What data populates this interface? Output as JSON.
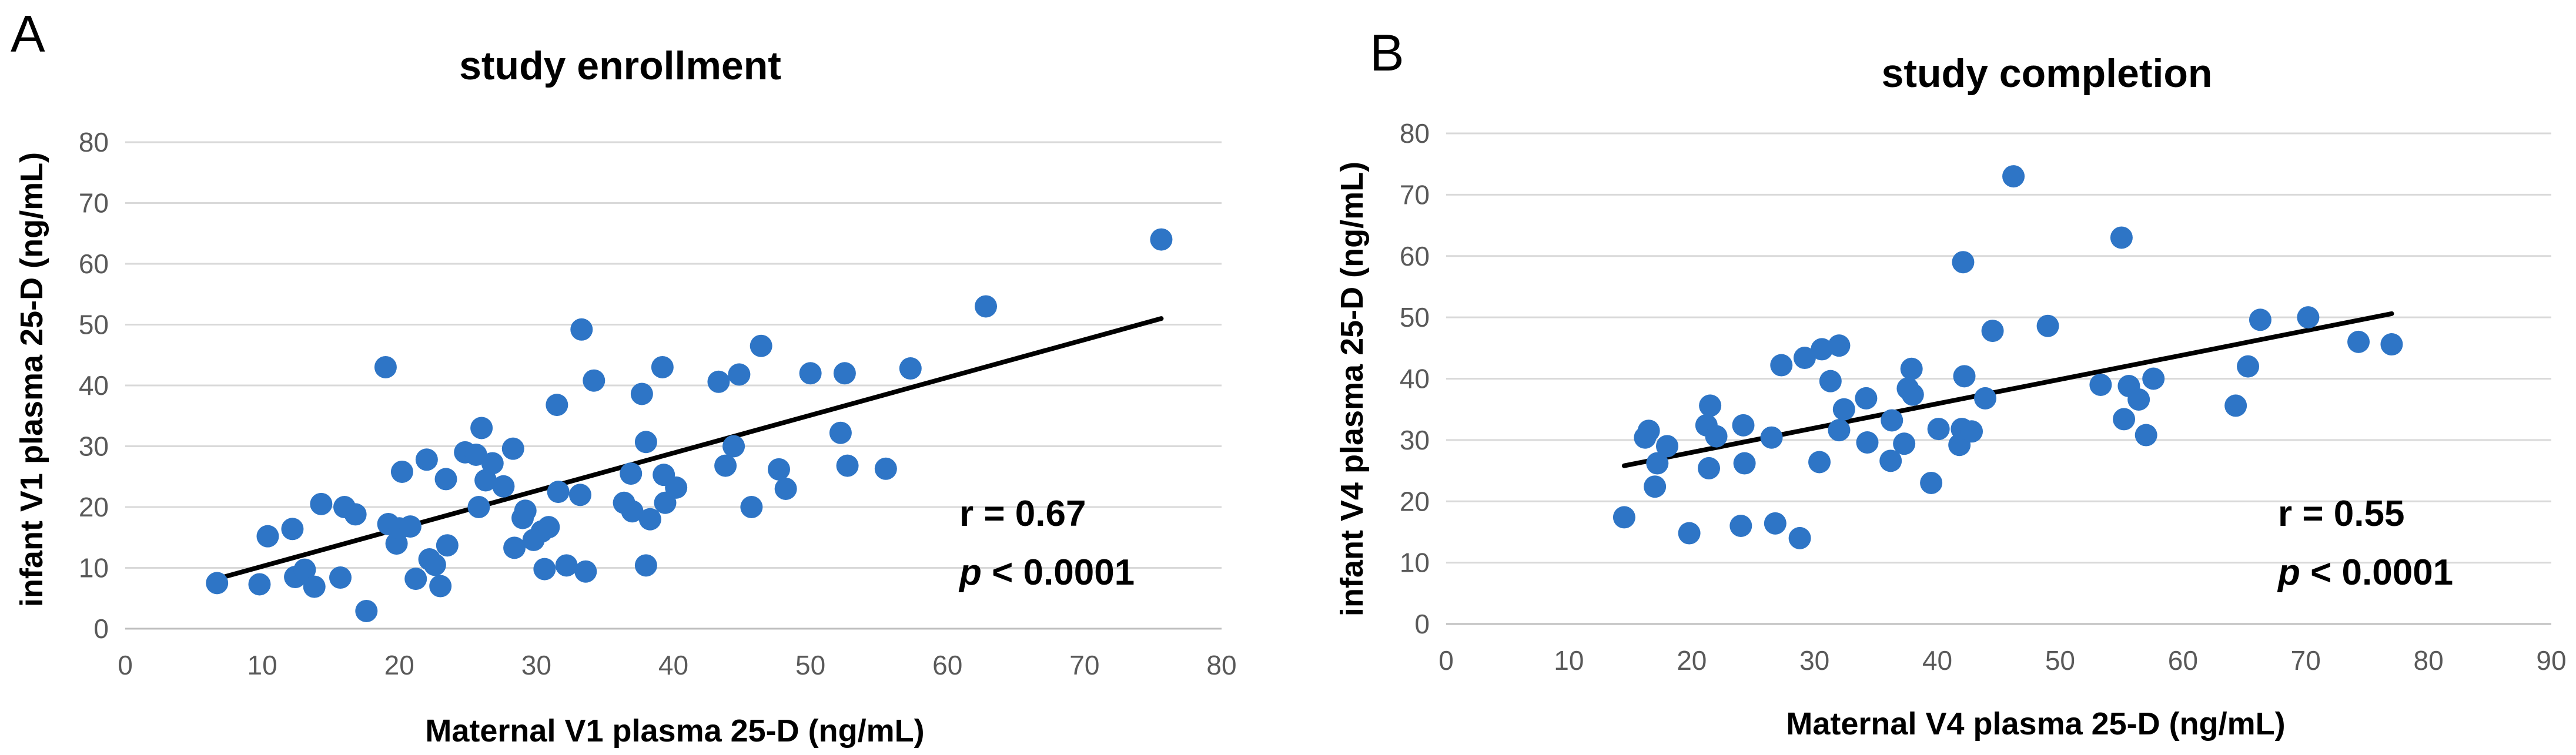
{
  "chart_data": [
    {
      "panel": "A",
      "type": "scatter",
      "title": "study enrollment",
      "xlabel": "Maternal V1 plasma 25-D (ng/mL)",
      "ylabel": "infant V1 plasma 25-D (ng/mL)",
      "xlim": [
        0,
        80
      ],
      "ylim": [
        0,
        80
      ],
      "xticks": [
        0,
        10,
        20,
        30,
        40,
        50,
        60,
        70,
        80
      ],
      "yticks": [
        0,
        10,
        20,
        30,
        40,
        50,
        60,
        70,
        80
      ],
      "grid": "horizontal",
      "stat_r": "r = 0.67",
      "stat_p_symbol": "p",
      "stat_p_value": " < 0.0001",
      "trendline": {
        "x": [
          6.7,
          75.6
        ],
        "y": [
          8.2,
          51.0
        ]
      },
      "points": [
        [
          6.7,
          7.5
        ],
        [
          9.8,
          7.3
        ],
        [
          10.4,
          15.2
        ],
        [
          12.2,
          16.4
        ],
        [
          12.4,
          8.5
        ],
        [
          13.1,
          9.7
        ],
        [
          13.8,
          6.9
        ],
        [
          14.3,
          20.5
        ],
        [
          15.7,
          8.4
        ],
        [
          16.0,
          20.0
        ],
        [
          16.8,
          18.8
        ],
        [
          17.6,
          2.9
        ],
        [
          19.0,
          43.0
        ],
        [
          19.2,
          17.2
        ],
        [
          19.8,
          14.0
        ],
        [
          20.0,
          16.5
        ],
        [
          20.2,
          25.8
        ],
        [
          20.8,
          16.8
        ],
        [
          21.2,
          8.2
        ],
        [
          22.0,
          27.8
        ],
        [
          22.2,
          11.4
        ],
        [
          22.6,
          10.5
        ],
        [
          23.0,
          7.0
        ],
        [
          23.4,
          24.6
        ],
        [
          23.5,
          13.7
        ],
        [
          24.8,
          29.0
        ],
        [
          25.6,
          28.6
        ],
        [
          25.8,
          20.0
        ],
        [
          26.0,
          33.0
        ],
        [
          26.3,
          24.4
        ],
        [
          26.8,
          27.2
        ],
        [
          27.6,
          23.4
        ],
        [
          28.3,
          29.6
        ],
        [
          28.4,
          13.3
        ],
        [
          29.0,
          18.2
        ],
        [
          29.2,
          19.4
        ],
        [
          29.8,
          14.6
        ],
        [
          30.4,
          16.0
        ],
        [
          30.6,
          9.8
        ],
        [
          30.9,
          16.7
        ],
        [
          31.5,
          36.8
        ],
        [
          31.6,
          22.5
        ],
        [
          32.2,
          10.4
        ],
        [
          33.2,
          22.0
        ],
        [
          33.3,
          49.2
        ],
        [
          33.6,
          9.4
        ],
        [
          34.2,
          40.8
        ],
        [
          36.4,
          20.7
        ],
        [
          36.9,
          25.5
        ],
        [
          37.0,
          19.3
        ],
        [
          37.7,
          38.6
        ],
        [
          38.0,
          30.7
        ],
        [
          38.0,
          10.4
        ],
        [
          38.3,
          18.0
        ],
        [
          39.2,
          43.0
        ],
        [
          39.3,
          25.3
        ],
        [
          39.4,
          20.7
        ],
        [
          40.2,
          23.2
        ],
        [
          43.3,
          40.6
        ],
        [
          43.8,
          26.8
        ],
        [
          44.4,
          30.0
        ],
        [
          44.8,
          41.8
        ],
        [
          45.7,
          20.0
        ],
        [
          46.4,
          46.5
        ],
        [
          47.7,
          26.2
        ],
        [
          48.2,
          23.0
        ],
        [
          50.0,
          42.0
        ],
        [
          52.2,
          32.2
        ],
        [
          52.5,
          42.0
        ],
        [
          52.7,
          26.8
        ],
        [
          55.5,
          26.3
        ],
        [
          57.3,
          42.8
        ],
        [
          62.8,
          53.0
        ],
        [
          75.6,
          64.0
        ]
      ]
    },
    {
      "panel": "B",
      "type": "scatter",
      "title": "study completion",
      "xlabel": "Maternal V4 plasma 25-D (ng/mL)",
      "ylabel": "infant V4 plasma 25-D (ng/mL)",
      "xlim": [
        0,
        90
      ],
      "ylim": [
        0,
        80
      ],
      "xticks": [
        0,
        10,
        20,
        30,
        40,
        50,
        60,
        70,
        80,
        90
      ],
      "yticks": [
        0,
        10,
        20,
        30,
        40,
        50,
        60,
        70,
        80
      ],
      "grid": "horizontal",
      "stat_r": "r = 0.55",
      "stat_p_symbol": "p",
      "stat_p_value": " < 0.0001",
      "trendline": {
        "x": [
          14.5,
          77.0
        ],
        "y": [
          25.8,
          50.6
        ]
      },
      "points": [
        [
          14.5,
          17.4
        ],
        [
          16.2,
          30.4
        ],
        [
          16.5,
          31.5
        ],
        [
          17.0,
          22.4
        ],
        [
          17.2,
          26.2
        ],
        [
          18.0,
          29.0
        ],
        [
          19.8,
          14.8
        ],
        [
          21.2,
          32.4
        ],
        [
          21.4,
          25.4
        ],
        [
          21.5,
          35.6
        ],
        [
          22.0,
          30.6
        ],
        [
          24.0,
          16.0
        ],
        [
          24.2,
          32.4
        ],
        [
          24.3,
          26.2
        ],
        [
          26.5,
          30.4
        ],
        [
          26.8,
          16.4
        ],
        [
          27.3,
          42.2
        ],
        [
          28.8,
          14.0
        ],
        [
          29.2,
          43.4
        ],
        [
          30.4,
          26.4
        ],
        [
          30.6,
          44.8
        ],
        [
          31.3,
          39.6
        ],
        [
          32.0,
          31.6
        ],
        [
          32.0,
          45.4
        ],
        [
          32.4,
          35.0
        ],
        [
          34.2,
          36.8
        ],
        [
          34.3,
          29.6
        ],
        [
          36.2,
          26.6
        ],
        [
          36.3,
          33.2
        ],
        [
          37.3,
          29.4
        ],
        [
          37.6,
          38.4
        ],
        [
          37.9,
          41.6
        ],
        [
          38.0,
          37.4
        ],
        [
          39.5,
          23.0
        ],
        [
          40.1,
          31.8
        ],
        [
          41.8,
          29.2
        ],
        [
          42.0,
          31.8
        ],
        [
          42.1,
          59.0
        ],
        [
          42.2,
          40.4
        ],
        [
          42.8,
          31.4
        ],
        [
          43.9,
          36.8
        ],
        [
          44.5,
          47.8
        ],
        [
          46.2,
          73.0
        ],
        [
          49.0,
          48.6
        ],
        [
          53.3,
          39.0
        ],
        [
          55.0,
          63.0
        ],
        [
          55.2,
          33.4
        ],
        [
          55.6,
          38.8
        ],
        [
          56.4,
          36.6
        ],
        [
          57.0,
          30.8
        ],
        [
          57.6,
          40.0
        ],
        [
          64.3,
          35.6
        ],
        [
          65.3,
          42.0
        ],
        [
          66.3,
          49.6
        ],
        [
          70.2,
          50.0
        ],
        [
          74.3,
          46.0
        ],
        [
          77.0,
          45.6
        ]
      ]
    }
  ]
}
